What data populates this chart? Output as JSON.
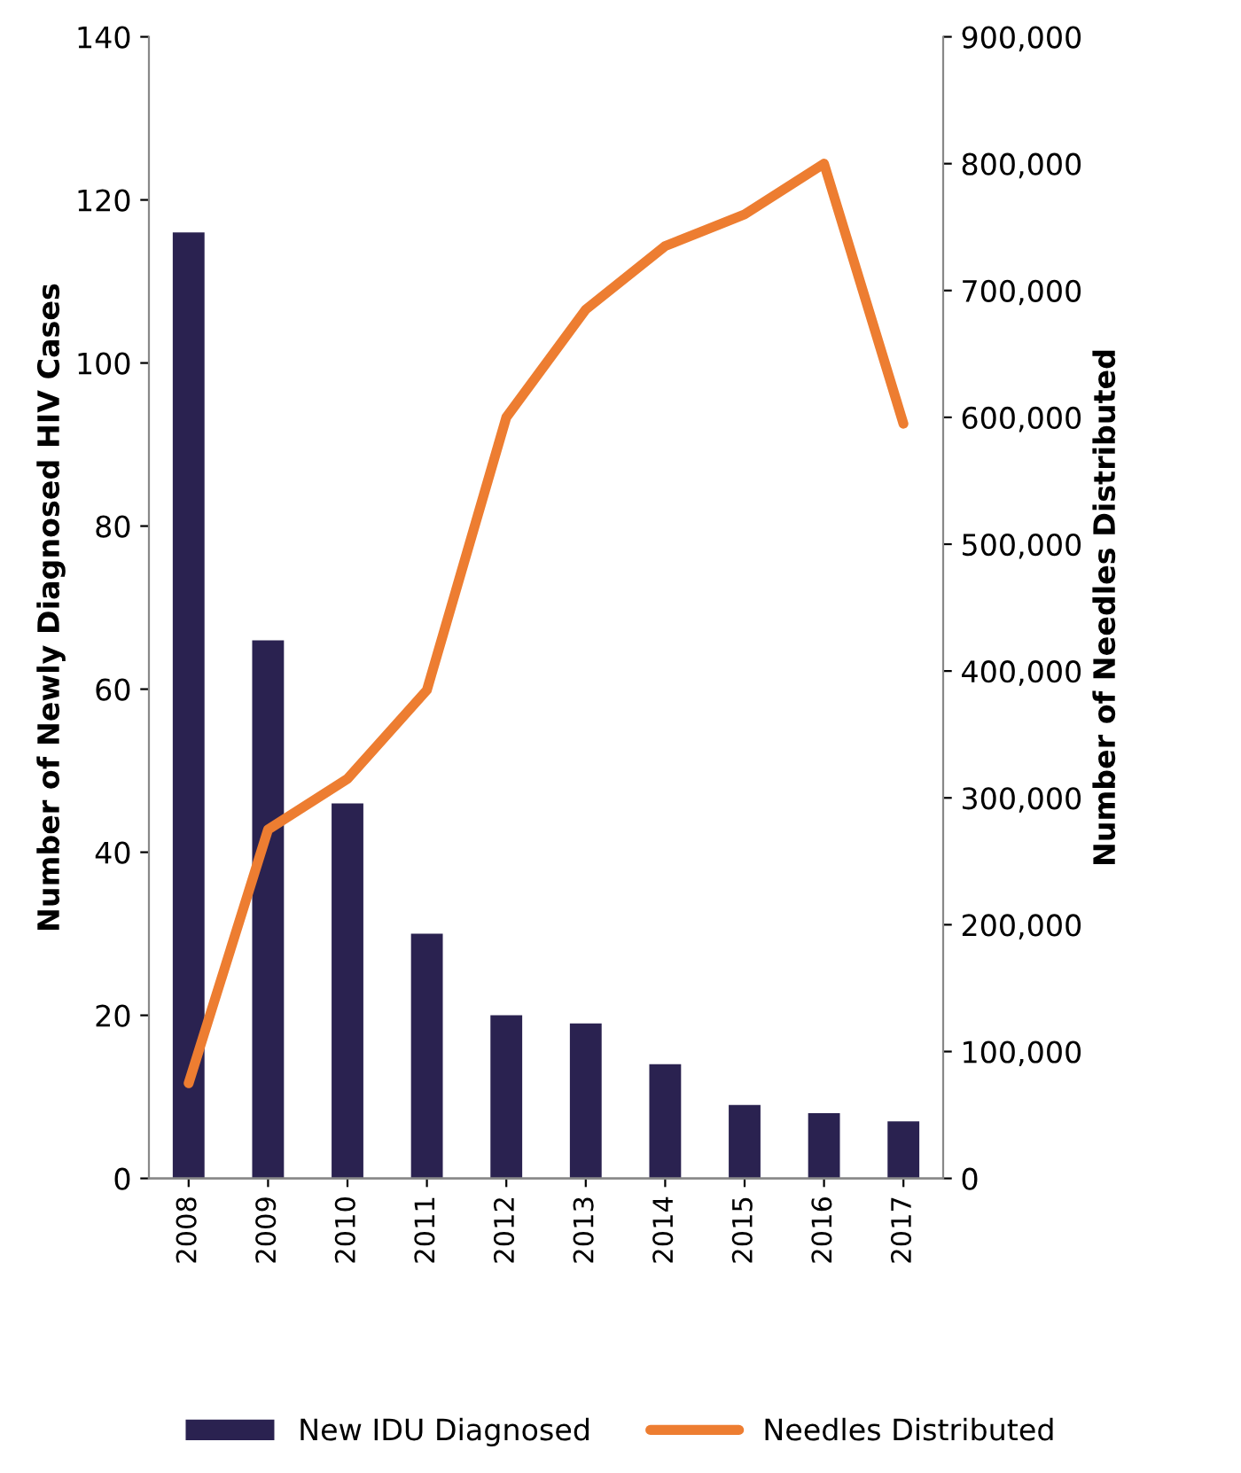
{
  "chart_data": {
    "type": "bar",
    "categories": [
      "2008",
      "2009",
      "2010",
      "2011",
      "2012",
      "2013",
      "2014",
      "2015",
      "2016",
      "2017"
    ],
    "ylabel": "Number of Newly Diagnosed HIV Cases",
    "y2label": "Number of Needles Distributed",
    "ylim": [
      0,
      140
    ],
    "yticks": [
      0,
      20,
      40,
      60,
      80,
      100,
      120,
      140
    ],
    "y2lim": [
      0,
      900000
    ],
    "y2ticks": [
      {
        "value": 0,
        "label": "0"
      },
      {
        "value": 100000,
        "label": "100,000"
      },
      {
        "value": 200000,
        "label": "200,000"
      },
      {
        "value": 300000,
        "label": "300,000"
      },
      {
        "value": 400000,
        "label": "400,000"
      },
      {
        "value": 500000,
        "label": "500,000"
      },
      {
        "value": 600000,
        "label": "600,000"
      },
      {
        "value": 700000,
        "label": "700,000"
      },
      {
        "value": 800000,
        "label": "800,000"
      },
      {
        "value": 900000,
        "label": "900,000"
      }
    ],
    "legend": "bottom",
    "grid": false,
    "series": [
      {
        "name": "New IDU Diagnosed",
        "color": "#2a2250",
        "values": [
          116,
          66,
          46,
          30,
          20,
          19,
          14,
          9,
          8,
          7
        ]
      },
      {
        "name": "Needles Distributed",
        "type": "line",
        "axis": "y2",
        "color": "#ed7d31",
        "values": [
          75000,
          275000,
          315000,
          385000,
          600000,
          685000,
          735000,
          760000,
          800000,
          595000
        ]
      }
    ]
  }
}
